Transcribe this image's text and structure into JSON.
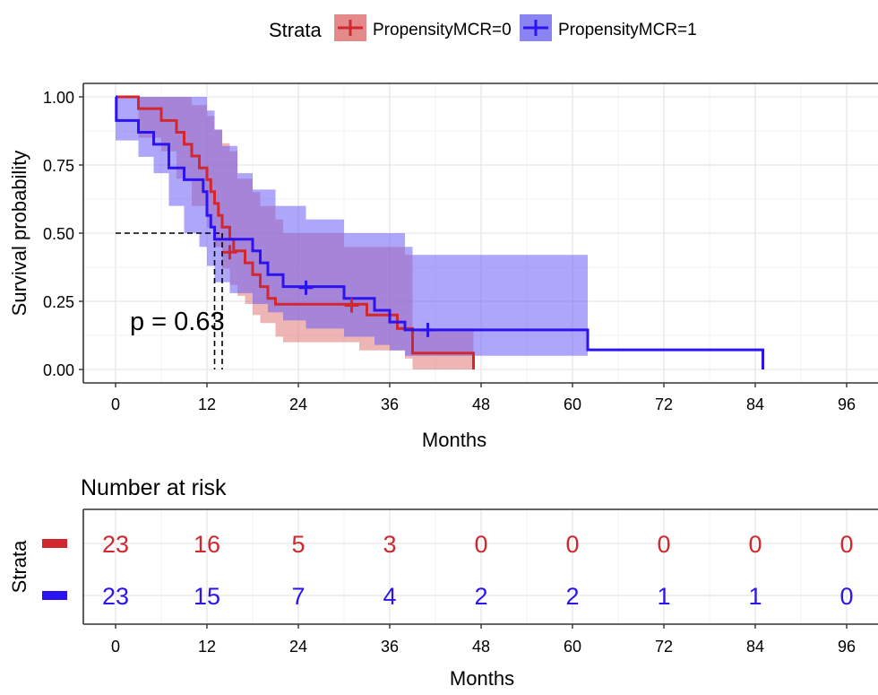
{
  "legend": {
    "title": "Strata",
    "items": [
      {
        "label": "PropensityMCR=0",
        "color": "#d0282e"
      },
      {
        "label": "PropensityMCR=1",
        "color": "#2b14f0"
      }
    ]
  },
  "chart_data": [
    {
      "type": "line",
      "subtype": "kaplan-meier step",
      "title": "",
      "xlabel": "Months",
      "ylabel": "Survival probability",
      "xlim": [
        0,
        96
      ],
      "ylim": [
        0,
        1
      ],
      "xticks": [
        0,
        12,
        24,
        36,
        48,
        60,
        72,
        84,
        96
      ],
      "yticks": [
        "0.00",
        "0.25",
        "0.50",
        "0.75",
        "1.00"
      ],
      "grid": true,
      "annotation": "p = 0.63",
      "median_survival": {
        "level": 0.5,
        "x_values": [
          13,
          14
        ]
      },
      "series": [
        {
          "name": "PropensityMCR=0",
          "color": "#d0282e",
          "band_color": "#e07878",
          "steps": [
            [
              0,
              1.0
            ],
            [
              3,
              0.957
            ],
            [
              6,
              0.913
            ],
            [
              8,
              0.87
            ],
            [
              9,
              0.826
            ],
            [
              10,
              0.783
            ],
            [
              11,
              0.739
            ],
            [
              12,
              0.696
            ],
            [
              12.5,
              0.652
            ],
            [
              13,
              0.609
            ],
            [
              13.5,
              0.565
            ],
            [
              14,
              0.522
            ],
            [
              15,
              0.478
            ],
            [
              15.5,
              0.435
            ],
            [
              17,
              0.391
            ],
            [
              18,
              0.348
            ],
            [
              19,
              0.304
            ],
            [
              20,
              0.261
            ],
            [
              21,
              0.239
            ],
            [
              33,
              0.2
            ],
            [
              37,
              0.15
            ],
            [
              39,
              0.06
            ],
            [
              47,
              0.0
            ]
          ],
          "upper": [
            [
              0,
              1.0
            ],
            [
              8,
              1.0
            ],
            [
              10,
              0.97
            ],
            [
              12,
              0.93
            ],
            [
              13,
              0.88
            ],
            [
              14,
              0.83
            ],
            [
              15,
              0.8
            ],
            [
              16,
              0.7
            ],
            [
              18,
              0.65
            ],
            [
              19,
              0.6
            ],
            [
              21,
              0.55
            ],
            [
              22,
              0.5
            ],
            [
              30,
              0.45
            ],
            [
              38,
              0.42
            ],
            [
              39,
              0.15
            ],
            [
              47,
              0.0
            ]
          ],
          "lower": [
            [
              0,
              1.0
            ],
            [
              3,
              0.85
            ],
            [
              6,
              0.8
            ],
            [
              8,
              0.7
            ],
            [
              10,
              0.6
            ],
            [
              12,
              0.52
            ],
            [
              13,
              0.45
            ],
            [
              14,
              0.37
            ],
            [
              15,
              0.31
            ],
            [
              16,
              0.27
            ],
            [
              17,
              0.24
            ],
            [
              18,
              0.2
            ],
            [
              19,
              0.17
            ],
            [
              21,
              0.12
            ],
            [
              22,
              0.1
            ],
            [
              32,
              0.07
            ],
            [
              38,
              0.04
            ],
            [
              39,
              0.0
            ]
          ],
          "censor": [
            [
              15,
              0.43
            ],
            [
              31,
              0.235
            ]
          ]
        },
        {
          "name": "PropensityMCR=1",
          "color": "#2b14f0",
          "band_color": "#6b5cf5",
          "steps": [
            [
              0,
              1.0
            ],
            [
              0.1,
              0.913
            ],
            [
              3,
              0.87
            ],
            [
              5,
              0.826
            ],
            [
              7,
              0.739
            ],
            [
              9,
              0.696
            ],
            [
              11.5,
              0.652
            ],
            [
              12,
              0.565
            ],
            [
              12.5,
              0.522
            ],
            [
              13,
              0.478
            ],
            [
              18,
              0.435
            ],
            [
              19,
              0.391
            ],
            [
              20,
              0.348
            ],
            [
              22,
              0.304
            ],
            [
              30,
              0.261
            ],
            [
              34,
              0.217
            ],
            [
              36,
              0.174
            ],
            [
              38,
              0.145
            ],
            [
              62,
              0.072
            ],
            [
              85,
              0.0
            ]
          ],
          "upper": [
            [
              0,
              1.0
            ],
            [
              9,
              1.0
            ],
            [
              12,
              0.95
            ],
            [
              13,
              0.88
            ],
            [
              14,
              0.82
            ],
            [
              16,
              0.72
            ],
            [
              18,
              0.66
            ],
            [
              21,
              0.6
            ],
            [
              25,
              0.55
            ],
            [
              30,
              0.5
            ],
            [
              38,
              0.45
            ],
            [
              39,
              0.42
            ],
            [
              62,
              0.0
            ]
          ],
          "lower": [
            [
              0,
              0.84
            ],
            [
              3,
              0.78
            ],
            [
              5,
              0.72
            ],
            [
              7,
              0.6
            ],
            [
              9,
              0.5
            ],
            [
              11,
              0.45
            ],
            [
              12,
              0.38
            ],
            [
              13,
              0.32
            ],
            [
              15,
              0.28
            ],
            [
              18,
              0.24
            ],
            [
              20,
              0.21
            ],
            [
              22,
              0.18
            ],
            [
              25,
              0.15
            ],
            [
              30,
              0.12
            ],
            [
              34,
              0.09
            ],
            [
              36,
              0.07
            ],
            [
              38,
              0.05
            ],
            [
              62,
              0.0
            ]
          ],
          "censor": [
            [
              25,
              0.3
            ],
            [
              41,
              0.145
            ]
          ]
        }
      ]
    },
    {
      "type": "table",
      "title": "Number at risk",
      "ylabel": "Strata",
      "xlabel": "Months",
      "x": [
        0,
        12,
        24,
        36,
        48,
        60,
        72,
        84,
        96
      ],
      "series": [
        {
          "name": "PropensityMCR=0",
          "color": "#d0282e",
          "values": [
            23,
            16,
            5,
            3,
            0,
            0,
            0,
            0,
            0
          ]
        },
        {
          "name": "PropensityMCR=1",
          "color": "#2b14f0",
          "values": [
            23,
            15,
            7,
            4,
            2,
            2,
            1,
            1,
            0
          ]
        }
      ]
    }
  ]
}
